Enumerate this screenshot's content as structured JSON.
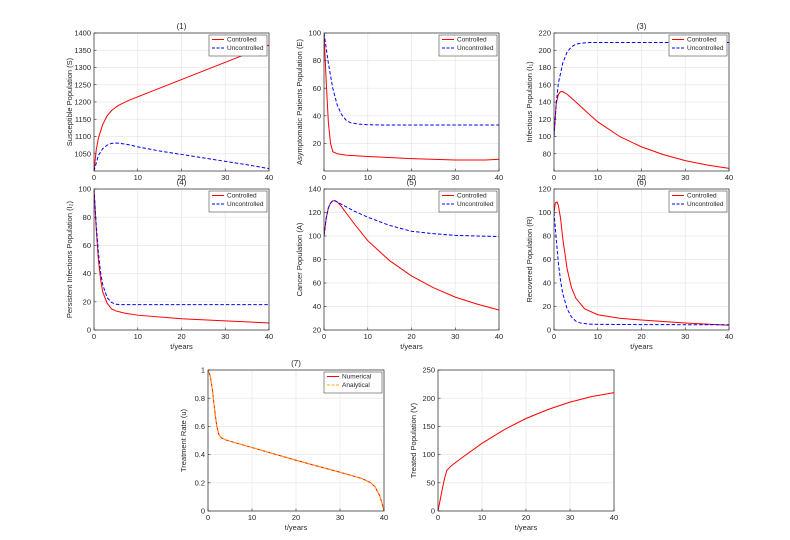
{
  "colors": {
    "controlled": "#ff0000",
    "uncontrolled": "#0000ff",
    "numerical": "#ff0000",
    "analytical": "#ffa500",
    "grid": "#e6e6e6",
    "axes": "#262626"
  },
  "chart_data": [
    {
      "id": "p1",
      "type": "line",
      "title": "(1)",
      "xlabel": "",
      "ylabel": "Susceptible Population (S)",
      "xlim": [
        0,
        40
      ],
      "ylim": [
        1000,
        1400
      ],
      "xticks": [
        0,
        10,
        20,
        30,
        40
      ],
      "yticks": [
        1050,
        1100,
        1150,
        1200,
        1250,
        1300,
        1350,
        1400
      ],
      "grid": true,
      "legend": "top-right",
      "series": [
        {
          "name": "Controlled",
          "style": "solid",
          "color": "#ff0000",
          "x": [
            0,
            0.5,
            1,
            2,
            3,
            4,
            5,
            6,
            8,
            10,
            15,
            20,
            25,
            30,
            35,
            40
          ],
          "y": [
            1000,
            1060,
            1095,
            1135,
            1160,
            1175,
            1185,
            1193,
            1205,
            1215,
            1240,
            1265,
            1290,
            1315,
            1340,
            1365
          ]
        },
        {
          "name": "Uncontrolled",
          "style": "dashed",
          "color": "#0000ff",
          "x": [
            0,
            1,
            2,
            3,
            4,
            5,
            6,
            8,
            10,
            15,
            20,
            25,
            30,
            35,
            40
          ],
          "y": [
            1000,
            1045,
            1065,
            1075,
            1080,
            1081,
            1080,
            1076,
            1070,
            1058,
            1048,
            1038,
            1028,
            1018,
            1007
          ]
        }
      ]
    },
    {
      "id": "p2",
      "type": "line",
      "title": "",
      "xlabel": "",
      "ylabel": "Asymptomatic Patients Population (E)",
      "xlim": [
        0,
        40
      ],
      "ylim": [
        0,
        100
      ],
      "xticks": [
        0,
        10,
        20,
        30,
        40
      ],
      "yticks": [
        20,
        40,
        60,
        80,
        100
      ],
      "grid": true,
      "legend": "top-right",
      "series": [
        {
          "name": "Controlled",
          "style": "solid",
          "color": "#ff0000",
          "x": [
            0,
            0.5,
            1,
            1.5,
            2,
            3,
            5,
            10,
            20,
            30,
            37,
            40
          ],
          "y": [
            100,
            65,
            35,
            20,
            14,
            12.5,
            11.5,
            10.5,
            9,
            8,
            8,
            8.5
          ]
        },
        {
          "name": "Uncontrolled",
          "style": "dashed",
          "color": "#0000ff",
          "x": [
            0,
            1,
            2,
            3,
            4,
            5,
            6,
            8,
            10,
            15,
            20,
            30,
            40
          ],
          "y": [
            100,
            78,
            60,
            48,
            41,
            37,
            35,
            34,
            33.5,
            33.3,
            33.3,
            33.3,
            33.3
          ]
        }
      ]
    },
    {
      "id": "p3",
      "type": "line",
      "title": "(3)",
      "xlabel": "",
      "ylabel": "Infectious Population (I₁)",
      "xlim": [
        0,
        40
      ],
      "ylim": [
        60,
        220
      ],
      "xticks": [
        0,
        10,
        20,
        30,
        40
      ],
      "yticks": [
        80,
        100,
        120,
        140,
        160,
        180,
        200,
        220
      ],
      "grid": true,
      "legend": "top-right",
      "series": [
        {
          "name": "Controlled",
          "style": "solid",
          "color": "#ff0000",
          "x": [
            0,
            0.5,
            1,
            1.5,
            2,
            3,
            5,
            8,
            10,
            15,
            20,
            25,
            30,
            35,
            40
          ],
          "y": [
            100,
            138,
            149,
            152,
            152,
            149,
            140,
            126,
            117,
            100,
            88,
            79,
            72,
            67,
            63
          ]
        },
        {
          "name": "Uncontrolled",
          "style": "dashed",
          "color": "#0000ff",
          "x": [
            0,
            0.5,
            1,
            2,
            3,
            4,
            5,
            6,
            8,
            10,
            15,
            20,
            30,
            40
          ],
          "y": [
            100,
            138,
            162,
            185,
            198,
            204,
            207,
            208,
            209,
            209,
            209,
            209,
            209,
            209
          ]
        }
      ]
    },
    {
      "id": "p4",
      "type": "line",
      "title": "(4)",
      "xlabel": "t/years",
      "ylabel": "Persistent Infections Population (I₂)",
      "xlim": [
        0,
        40
      ],
      "ylim": [
        0,
        100
      ],
      "xticks": [
        0,
        10,
        20,
        30,
        40
      ],
      "yticks": [
        0,
        20,
        40,
        60,
        80,
        100
      ],
      "grid": true,
      "legend": "top-right",
      "series": [
        {
          "name": "Controlled",
          "style": "solid",
          "color": "#ff0000",
          "x": [
            0,
            0.5,
            1,
            1.5,
            2,
            3,
            4,
            5,
            7,
            10,
            20,
            30,
            40
          ],
          "y": [
            100,
            72,
            50,
            36,
            27,
            19,
            15,
            13.5,
            12,
            10.5,
            8,
            6.5,
            5
          ]
        },
        {
          "name": "Uncontrolled",
          "style": "dashed",
          "color": "#0000ff",
          "x": [
            0,
            0.5,
            1,
            1.5,
            2,
            3,
            4,
            5,
            6,
            8,
            10,
            20,
            30,
            40
          ],
          "y": [
            100,
            75,
            55,
            41,
            32,
            23,
            19.5,
            18.3,
            18,
            18,
            18,
            18,
            18,
            18
          ]
        }
      ]
    },
    {
      "id": "p5",
      "type": "line",
      "title": "(5)",
      "xlabel": "t/years",
      "ylabel": "Cancer Population (A)",
      "xlim": [
        0,
        40
      ],
      "ylim": [
        20,
        140
      ],
      "xticks": [
        0,
        10,
        20,
        30,
        40
      ],
      "yticks": [
        20,
        40,
        60,
        80,
        100,
        120,
        140
      ],
      "grid": true,
      "legend": "top-right",
      "series": [
        {
          "name": "Controlled",
          "style": "solid",
          "color": "#ff0000",
          "x": [
            0,
            0.5,
            1,
            1.5,
            2,
            2.5,
            3,
            4,
            5,
            7,
            10,
            15,
            20,
            25,
            30,
            35,
            40
          ],
          "y": [
            100,
            115,
            124,
            128,
            130,
            130,
            129,
            125,
            120,
            110,
            96,
            79,
            66,
            56,
            48,
            42,
            37
          ]
        },
        {
          "name": "Uncontrolled",
          "style": "dashed",
          "color": "#0000ff",
          "x": [
            0,
            0.5,
            1,
            1.5,
            2,
            2.5,
            3,
            4,
            5,
            7,
            10,
            15,
            20,
            25,
            30,
            35,
            40
          ],
          "y": [
            100,
            115,
            124,
            128,
            130,
            130,
            129,
            127,
            125,
            121,
            116,
            109,
            104,
            102,
            100.5,
            100,
            99.5
          ]
        }
      ]
    },
    {
      "id": "p6",
      "type": "line",
      "title": "(6)",
      "xlabel": "t/years",
      "ylabel": "Recovered Population (R)",
      "xlim": [
        0,
        40
      ],
      "ylim": [
        0,
        120
      ],
      "xticks": [
        0,
        10,
        20,
        30,
        40
      ],
      "yticks": [
        0,
        20,
        40,
        60,
        80,
        100,
        120
      ],
      "grid": true,
      "legend": "top-right",
      "series": [
        {
          "name": "Controlled",
          "style": "solid",
          "color": "#ff0000",
          "x": [
            0,
            0.3,
            0.7,
            1,
            1.5,
            2,
            3,
            4,
            5,
            7,
            10,
            15,
            20,
            30,
            40
          ],
          "y": [
            100,
            108,
            109,
            106,
            95,
            78,
            52,
            36,
            27,
            18,
            13,
            10,
            8.5,
            6,
            4
          ]
        },
        {
          "name": "Uncontrolled",
          "style": "dashed",
          "color": "#0000ff",
          "x": [
            0,
            0.5,
            1,
            1.5,
            2,
            3,
            4,
            5,
            6,
            8,
            10,
            20,
            30,
            40
          ],
          "y": [
            100,
            78,
            57,
            42,
            31,
            18,
            11,
            7.5,
            6,
            5,
            4.8,
            4.6,
            4.5,
            4.5
          ]
        }
      ]
    },
    {
      "id": "p7",
      "type": "line",
      "title": "(7)",
      "xlabel": "t/years",
      "ylabel": "Treatment Rate (u)",
      "xlim": [
        0,
        40
      ],
      "ylim": [
        0,
        1
      ],
      "xticks": [
        0,
        10,
        20,
        30,
        40
      ],
      "yticks": [
        0,
        0.2,
        0.4,
        0.6,
        0.8,
        1
      ],
      "grid": true,
      "legend": "top-right",
      "series": [
        {
          "name": "Numerical",
          "style": "solid",
          "color": "#ff0000",
          "x": [
            0,
            0.5,
            1,
            1.5,
            2,
            2.5,
            3,
            4,
            5,
            10,
            20,
            30,
            35,
            37,
            38,
            39,
            39.5,
            40
          ],
          "y": [
            1,
            0.96,
            0.86,
            0.72,
            0.6,
            0.54,
            0.52,
            0.505,
            0.495,
            0.45,
            0.36,
            0.275,
            0.23,
            0.2,
            0.17,
            0.11,
            0.06,
            0
          ]
        },
        {
          "name": "Analytical",
          "style": "dashed",
          "color": "#ffa500",
          "x": [
            0,
            0.5,
            1,
            1.5,
            2,
            2.5,
            3,
            4,
            5,
            10,
            20,
            30,
            35,
            37,
            38,
            39,
            39.5,
            40
          ],
          "y": [
            1,
            0.96,
            0.86,
            0.72,
            0.6,
            0.54,
            0.52,
            0.505,
            0.495,
            0.45,
            0.36,
            0.275,
            0.23,
            0.2,
            0.17,
            0.11,
            0.06,
            0
          ]
        }
      ]
    },
    {
      "id": "p8",
      "type": "line",
      "title": "",
      "xlabel": "t/years",
      "ylabel": "Treated Population (V)",
      "xlim": [
        0,
        40
      ],
      "ylim": [
        0,
        250
      ],
      "xticks": [
        0,
        10,
        20,
        30,
        40
      ],
      "yticks": [
        0,
        50,
        100,
        150,
        200,
        250
      ],
      "grid": true,
      "legend": "none",
      "series": [
        {
          "name": "",
          "style": "solid",
          "color": "#ff0000",
          "x": [
            0,
            0.5,
            1,
            1.5,
            2,
            3,
            5,
            10,
            15,
            20,
            25,
            30,
            35,
            40
          ],
          "y": [
            0,
            20,
            40,
            58,
            72,
            80,
            92,
            120,
            144,
            164,
            180,
            193,
            203,
            210
          ]
        }
      ]
    }
  ]
}
